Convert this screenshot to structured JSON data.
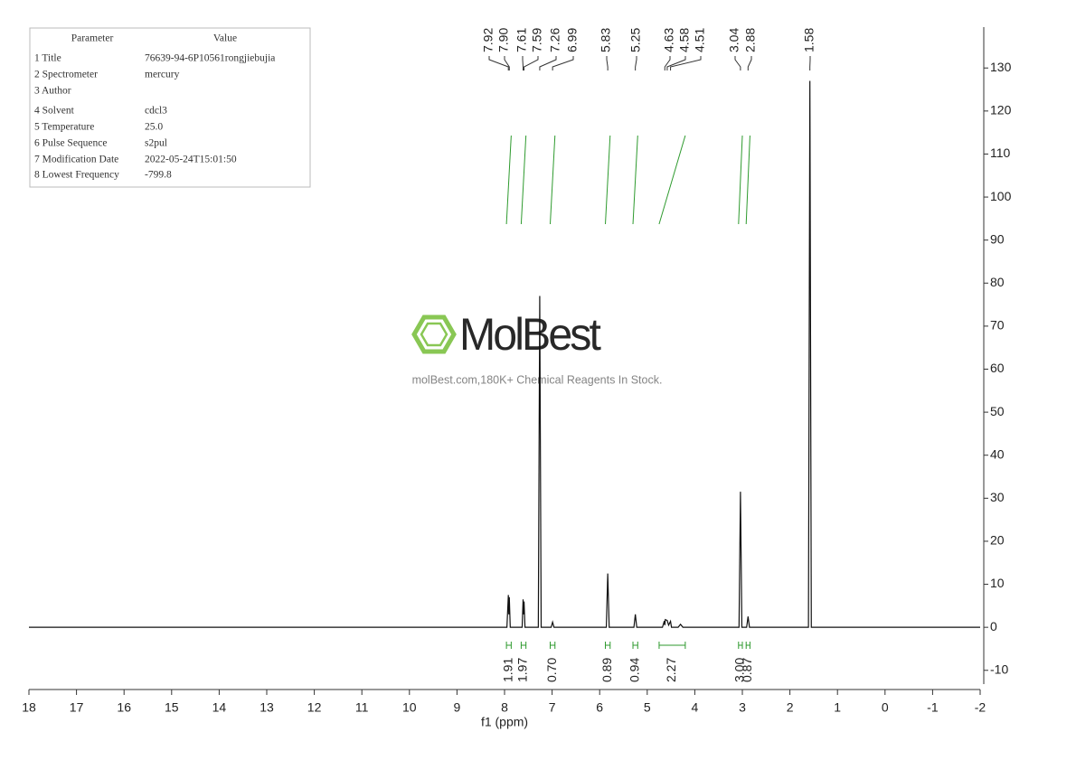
{
  "chart_data": {
    "type": "line",
    "x_label": "f1 (ppm)",
    "xlim": [
      18,
      -2
    ],
    "xticks": [
      18,
      17,
      16,
      15,
      14,
      13,
      12,
      11,
      10,
      9,
      8,
      7,
      6,
      5,
      4,
      3,
      2,
      1,
      0,
      -1,
      -2
    ],
    "ylim": [
      -13.2,
      139.5
    ],
    "yticks": [
      -10,
      0,
      10,
      20,
      30,
      40,
      50,
      60,
      70,
      80,
      90,
      100,
      110,
      120,
      130
    ],
    "series": [
      {
        "color": "#111111",
        "x": [
          18,
          8.2,
          7.95,
          7.92,
          7.91,
          7.9,
          7.88,
          7.63,
          7.61,
          7.6,
          7.59,
          7.57,
          7.29,
          7.26,
          7.23,
          7.02,
          6.99,
          6.96,
          5.86,
          5.83,
          5.8,
          5.28,
          5.25,
          5.22,
          4.68,
          4.64,
          4.63,
          4.62,
          4.58,
          4.55,
          4.51,
          4.49,
          4.35,
          4.3,
          4.25,
          3.07,
          3.04,
          3.01,
          2.91,
          2.88,
          2.85,
          1.61,
          1.58,
          1.55,
          -2
        ],
        "values": [
          0,
          0,
          0,
          7.5,
          3,
          7,
          0,
          0,
          6.5,
          3,
          6,
          0,
          0,
          77,
          0,
          0,
          1.2,
          0,
          0,
          12.5,
          0,
          0,
          3,
          0,
          0,
          1.5,
          0.5,
          1.8,
          1.6,
          0.5,
          1.4,
          0,
          0,
          0.7,
          0,
          0,
          31.5,
          0,
          0,
          2.5,
          0,
          0,
          127,
          0,
          0
        ]
      }
    ],
    "peak_labels": [
      "7.92",
      "7.90",
      "7.61",
      "7.59",
      "7.26",
      "6.99",
      "5.83",
      "5.25",
      "4.63",
      "4.58",
      "4.51",
      "3.04",
      "2.88",
      "1.58"
    ],
    "integral_color": "#2e9a2e",
    "integrals": [
      {
        "from": 7.96,
        "to": 7.86,
        "label": "1.91"
      },
      {
        "from": 7.65,
        "to": 7.55,
        "label": "1.97"
      },
      {
        "from": 7.04,
        "to": 6.94,
        "label": "0.70"
      },
      {
        "from": 5.88,
        "to": 5.78,
        "label": "0.89"
      },
      {
        "from": 5.3,
        "to": 5.2,
        "label": "0.94"
      },
      {
        "from": 4.75,
        "to": 4.2,
        "label": "2.27"
      },
      {
        "from": 3.08,
        "to": 3.0,
        "label": "3.00"
      },
      {
        "from": 2.92,
        "to": 2.84,
        "label": "0.87"
      }
    ]
  },
  "parameters": {
    "header": [
      "Parameter",
      "Value"
    ],
    "rows": [
      [
        "1 Title",
        "76639-94-6P10561rongjiebujia"
      ],
      [
        "2 Spectrometer",
        "mercury"
      ],
      [
        "3 Author"
      ],
      [
        "4 Solvent",
        "cdcl3"
      ],
      [
        "5 Temperature",
        "25.0"
      ],
      [
        "6 Pulse Sequence",
        "s2pul"
      ],
      [
        "7 Modification Date",
        "2022-05-24T15:01:50"
      ],
      [
        "8 Lowest Frequency",
        "-799.8"
      ]
    ]
  },
  "watermark": {
    "brand": "MolBest",
    "caption": "molBest.com,180K+ Chemical Reagents In Stock."
  }
}
